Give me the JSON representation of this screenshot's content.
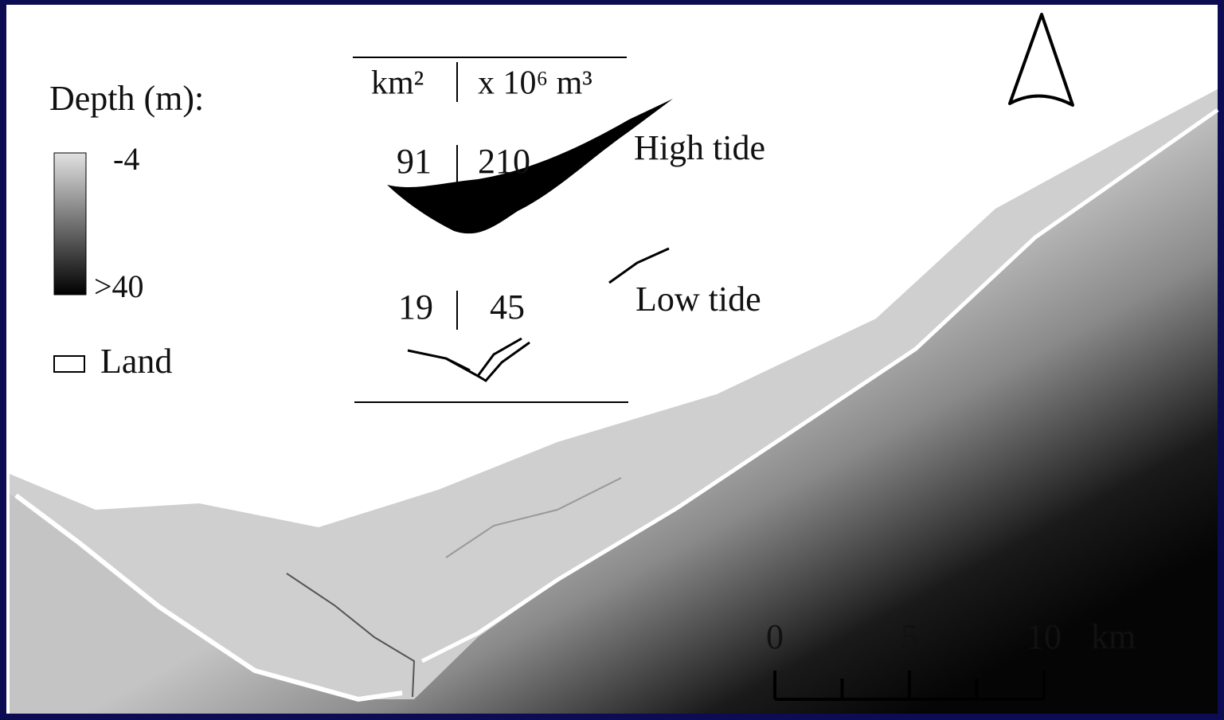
{
  "legend": {
    "title": "Depth (m):",
    "shallow_label": "-4",
    "deep_label": ">40",
    "land_label": "Land"
  },
  "table": {
    "headers": [
      "km²",
      "x 10⁶ m³"
    ],
    "rows": [
      {
        "area": 91,
        "volume": 210,
        "label": "High tide"
      },
      {
        "area": 19,
        "volume": 45,
        "label": "Low tide"
      }
    ]
  },
  "scale_bar": {
    "ticks": [
      0,
      5,
      10
    ],
    "unit": "km"
  }
}
